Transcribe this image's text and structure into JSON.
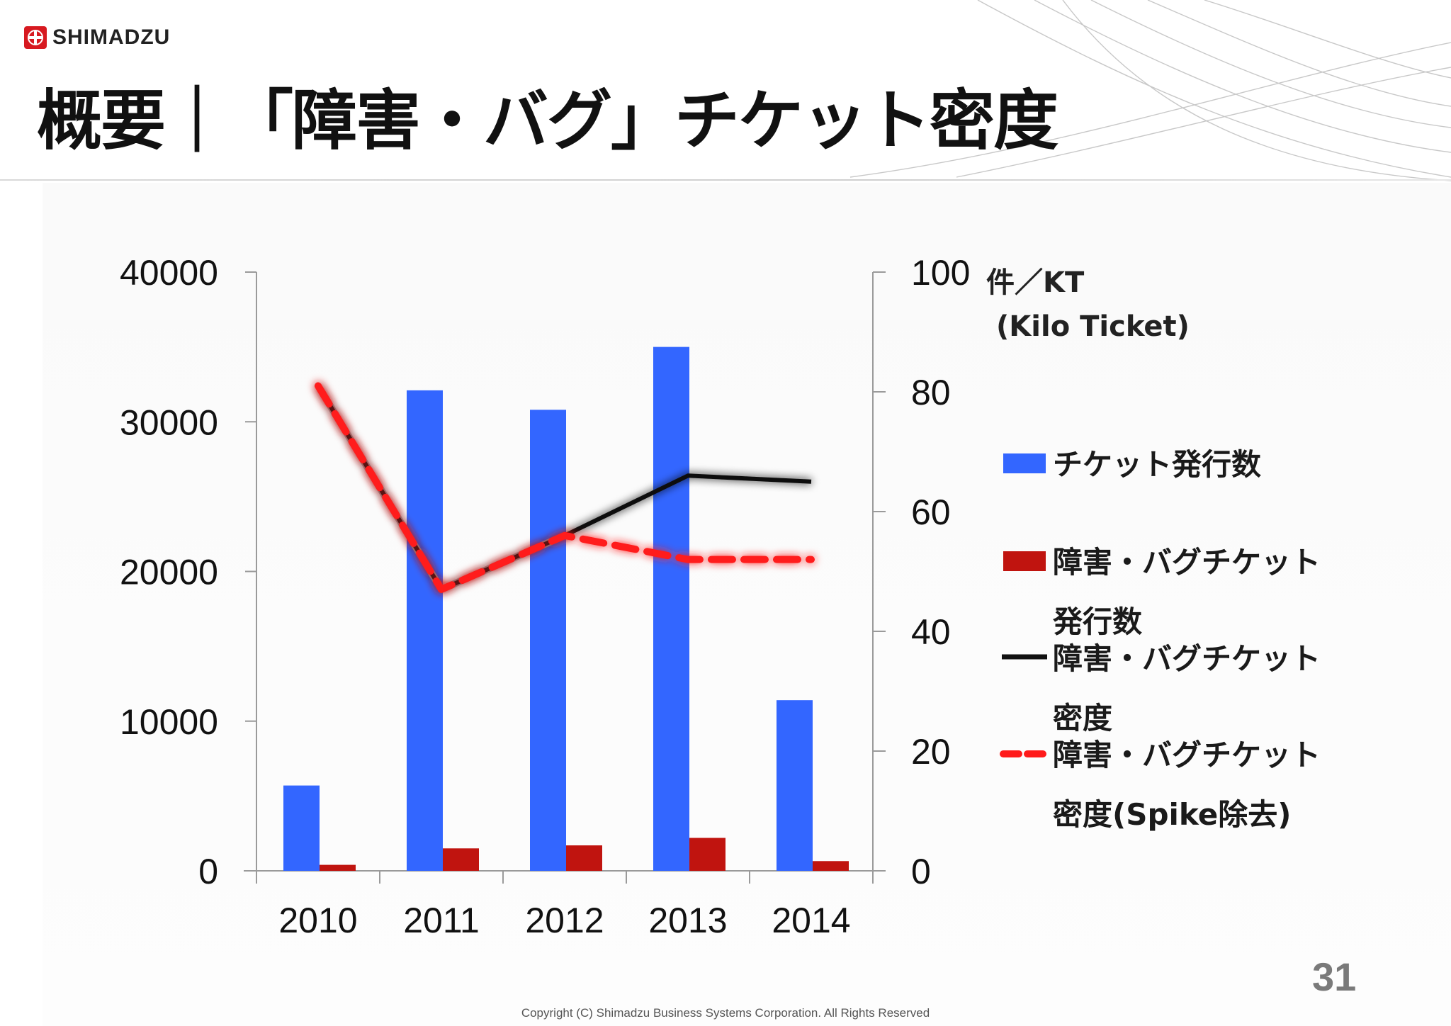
{
  "company": {
    "name": "SHIMADZU"
  },
  "title": "概要｜「障害・バグ」チケット密度",
  "page_number": "31",
  "copyright": "Copyright (C) Shimadzu Business Systems Corporation. All Rights Reserved",
  "colors": {
    "ticket_bar": "#3366ff",
    "bug_bar": "#c0140f",
    "density_line": "#111111",
    "density_spike_removed": "#ff1a1a",
    "spike_segment": "#b5b5b5"
  },
  "chart_data": {
    "type": "bar",
    "title": "",
    "categories": [
      "2010",
      "2011",
      "2012",
      "2013",
      "2014"
    ],
    "y_left": {
      "ticks": [
        0,
        10000,
        20000,
        30000,
        40000
      ],
      "ylim": [
        0,
        40000
      ]
    },
    "y_right": {
      "ticks": [
        0,
        20,
        40,
        60,
        80,
        100
      ],
      "ylim": [
        0,
        100
      ],
      "unit": "件／KT",
      "unit_sub": "(Kilo Ticket)"
    },
    "series": [
      {
        "name": "チケット発行数",
        "type": "bar",
        "axis": "left",
        "values": [
          5700,
          32100,
          30800,
          35000,
          11400
        ]
      },
      {
        "name": "障害・バグチケット発行数",
        "type": "bar",
        "axis": "left",
        "values": [
          400,
          1500,
          1700,
          2200,
          650
        ]
      },
      {
        "name": "障害・バグチケット密度",
        "type": "line",
        "axis": "right",
        "values": [
          81,
          47,
          56,
          66,
          65
        ]
      },
      {
        "name": "障害・バグチケット密度(Spike除去)",
        "type": "line",
        "style": "dashed",
        "axis": "right",
        "values": [
          81,
          47,
          56,
          52,
          52
        ]
      }
    ],
    "legend": [
      {
        "key": "ticket",
        "lines": [
          "チケット発行数"
        ]
      },
      {
        "key": "bug",
        "lines": [
          "障害・バグチケット",
          "発行数"
        ]
      },
      {
        "key": "density",
        "lines": [
          "障害・バグチケット",
          "密度"
        ]
      },
      {
        "key": "spike",
        "lines": [
          "障害・バグチケット",
          "密度(Spike除去)"
        ]
      }
    ],
    "legend_position": "right"
  }
}
